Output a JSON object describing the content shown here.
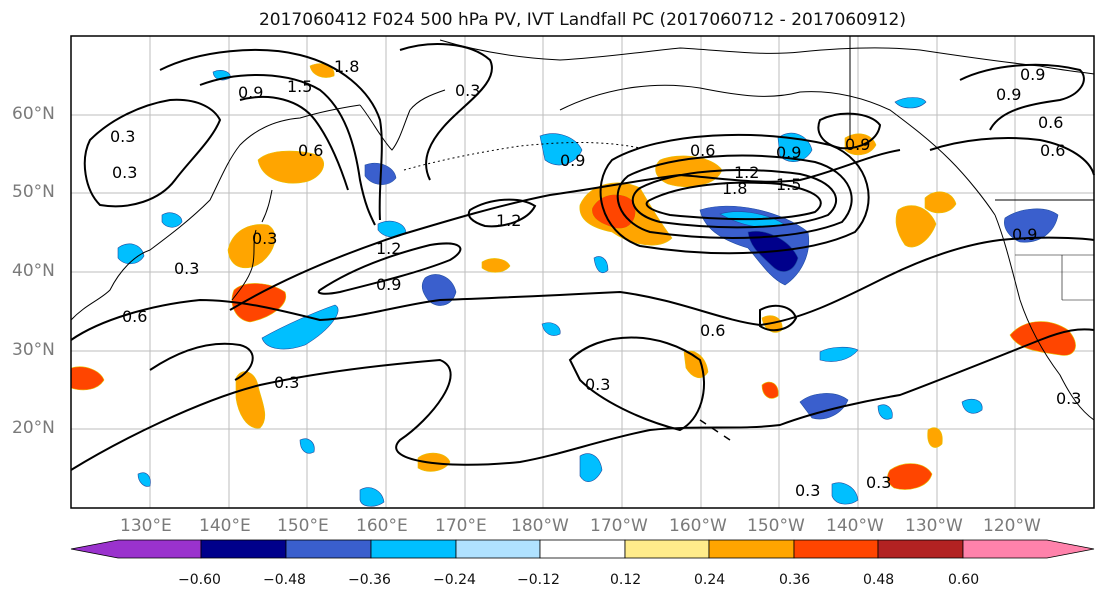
{
  "title": "2017060412 F024 500 hPa PV, IVT Landfall PC (2017060712 - 2017060912)",
  "lat_labels": [
    "60°N",
    "50°N",
    "40°N",
    "30°N",
    "20°N"
  ],
  "lon_labels": [
    "130°E",
    "140°E",
    "150°E",
    "160°E",
    "170°E",
    "180°W",
    "170°W",
    "160°W",
    "150°W",
    "140°W",
    "130°W",
    "120°W"
  ],
  "colorbar": {
    "ticks": [
      "−0.60",
      "−0.48",
      "−0.36",
      "−0.24",
      "−0.12",
      "0.12",
      "0.24",
      "0.36",
      "0.48",
      "0.60"
    ],
    "colors": [
      "#9a32cd",
      "#00008b",
      "#3a5fcd",
      "#00bfff",
      "#b0e2ff",
      "#ffffff",
      "#ffec8b",
      "#ffa500",
      "#ff4500",
      "#b22222",
      "#ff82ab"
    ]
  },
  "contour_labels": [
    "1.8",
    "1.5",
    "0.9",
    "0.6",
    "0.3",
    "1.2",
    "0.9",
    "0.6",
    "0.3",
    "1.2",
    "1.8",
    "1.5",
    "0.9",
    "0.9",
    "0.6",
    "0.3",
    "0.3",
    "0.3",
    "0.3",
    "0.3",
    "0.9",
    "0.6",
    "1.2",
    "0.9",
    "0.3",
    "0.3",
    "0.3",
    "0.6",
    "0.9",
    "0.6",
    "0.9"
  ]
}
